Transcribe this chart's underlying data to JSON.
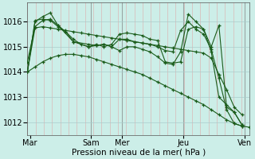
{
  "title": "",
  "xlabel": "Pression niveau de la mer( hPa )",
  "bg_color": "#cceee8",
  "line_color": "#1a5c1a",
  "grid_major_color": "#aacccc",
  "grid_minor_color": "#ddaaaa",
  "ylim": [
    1011.5,
    1016.75
  ],
  "xlim": [
    0,
    174
  ],
  "xtick_labels": [
    "Mar",
    "Sam",
    "Mer",
    "Jeu",
    "Ven"
  ],
  "xtick_pos": [
    2,
    50,
    74,
    122,
    170
  ],
  "yticks": [
    1012,
    1013,
    1014,
    1015,
    1016
  ],
  "lines": [
    {
      "x": [
        0,
        6,
        12,
        18,
        24,
        30,
        36,
        42,
        48,
        54,
        60,
        66,
        72,
        78,
        84,
        90,
        96,
        102,
        108,
        114,
        120,
        126,
        132,
        138,
        144,
        150,
        156,
        162,
        168,
        174
      ],
      "y": [
        1014.0,
        1014.2,
        1014.4,
        1014.55,
        1014.65,
        1014.7,
        1014.7,
        1014.65,
        1014.6,
        1014.5,
        1014.4,
        1014.3,
        1014.2,
        1014.1,
        1014.0,
        1013.9,
        1013.75,
        1013.6,
        1013.45,
        1013.3,
        1013.15,
        1013.0,
        1012.85,
        1012.7,
        1012.5,
        1012.3,
        1012.1,
        1011.95,
        1011.85,
        1011.8
      ]
    },
    {
      "x": [
        0,
        6,
        12,
        18,
        24,
        30,
        36,
        42,
        48,
        54,
        60,
        66,
        72,
        78,
        84,
        90,
        96,
        102,
        108,
        114,
        120,
        126,
        132,
        138,
        144,
        150,
        156,
        162,
        168
      ],
      "y": [
        1014.0,
        1015.75,
        1015.8,
        1015.75,
        1015.7,
        1015.65,
        1015.6,
        1015.55,
        1015.5,
        1015.45,
        1015.4,
        1015.35,
        1015.3,
        1015.25,
        1015.2,
        1015.15,
        1015.1,
        1015.05,
        1015.0,
        1014.95,
        1014.9,
        1014.85,
        1014.8,
        1014.75,
        1014.55,
        1013.9,
        1013.3,
        1012.6,
        1012.3
      ]
    },
    {
      "x": [
        0,
        6,
        12,
        18,
        24,
        30,
        36,
        48,
        54,
        60,
        66,
        72,
        78,
        84,
        90,
        96,
        102,
        108,
        114,
        120,
        126,
        132,
        138,
        144,
        150,
        156,
        162,
        168
      ],
      "y": [
        1014.0,
        1016.05,
        1016.1,
        1016.05,
        1015.8,
        1015.6,
        1015.2,
        1015.1,
        1015.05,
        1015.1,
        1015.0,
        1014.85,
        1015.0,
        1015.0,
        1014.9,
        1014.8,
        1014.6,
        1014.35,
        1014.3,
        1014.8,
        1016.3,
        1016.0,
        1015.7,
        1014.8,
        1013.0,
        1012.7,
        1012.4,
        1011.9
      ]
    },
    {
      "x": [
        0,
        6,
        12,
        18,
        24,
        30,
        36,
        42,
        48,
        54,
        60,
        66,
        72,
        78,
        84,
        90,
        96,
        102,
        108,
        114,
        120,
        126,
        132,
        138,
        144,
        150,
        156,
        162,
        168
      ],
      "y": [
        1014.0,
        1016.0,
        1016.2,
        1016.35,
        1015.85,
        1015.6,
        1015.3,
        1015.1,
        1015.0,
        1015.05,
        1015.1,
        1015.0,
        1015.3,
        1015.3,
        1015.2,
        1015.15,
        1015.1,
        1015.0,
        1014.85,
        1014.8,
        1015.65,
        1016.0,
        1015.7,
        1015.5,
        1014.9,
        1013.75,
        1012.5,
        1011.95,
        1011.85
      ]
    },
    {
      "x": [
        0,
        6,
        12,
        18,
        24,
        36,
        48,
        54,
        60,
        66,
        72,
        78,
        84,
        90,
        96,
        102,
        108,
        114,
        120,
        126,
        132,
        138,
        144,
        150,
        156,
        162,
        168
      ],
      "y": [
        1014.4,
        1015.8,
        1016.05,
        1016.1,
        1015.85,
        1015.2,
        1015.0,
        1015.1,
        1015.0,
        1015.1,
        1015.5,
        1015.55,
        1015.5,
        1015.45,
        1015.3,
        1015.25,
        1014.4,
        1014.35,
        1014.4,
        1015.7,
        1015.8,
        1015.7,
        1015.0,
        1015.85,
        1012.6,
        1012.4,
        1011.9
      ]
    }
  ],
  "vline_positions": [
    50,
    74,
    122,
    170
  ],
  "vline_color": "#777777",
  "xlabel_fontsize": 7.5,
  "tick_fontsize": 7
}
